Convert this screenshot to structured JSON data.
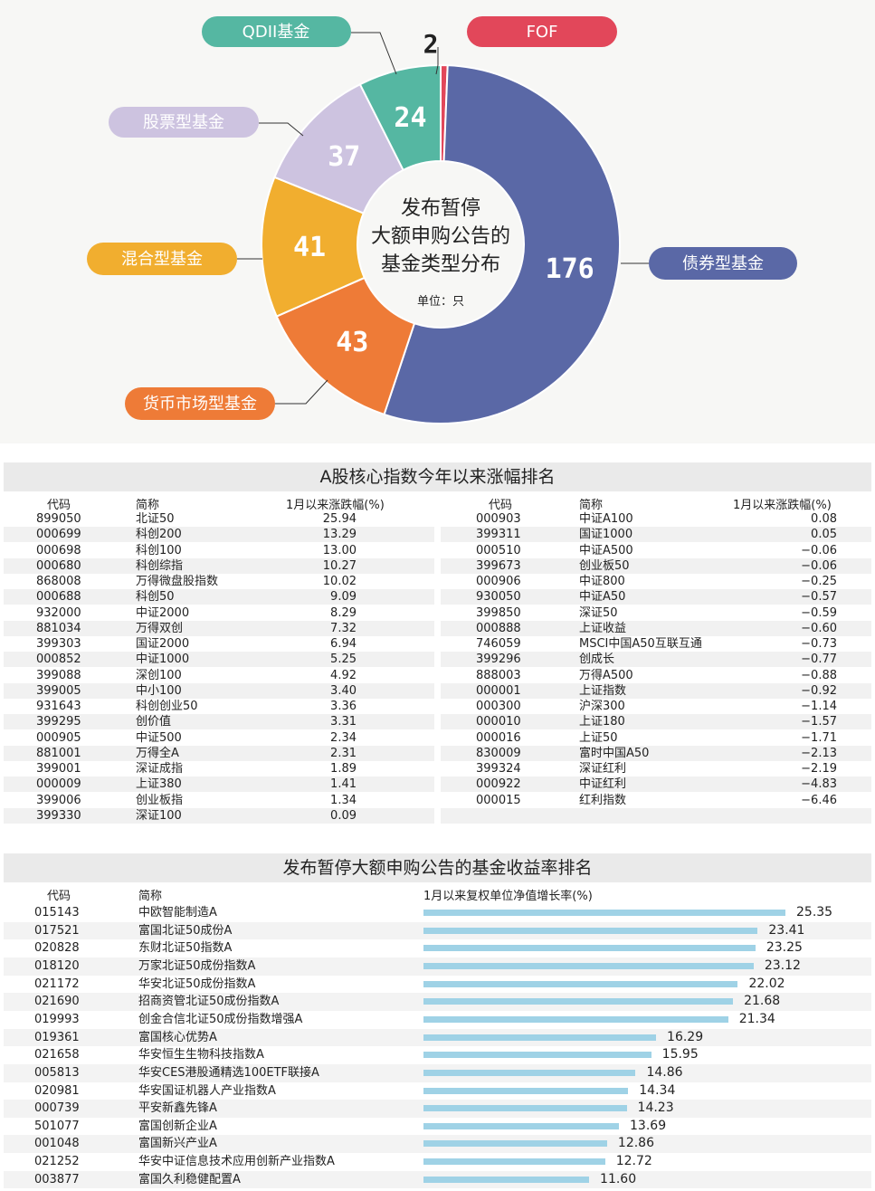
{
  "donut": {
    "title_lines": [
      "发布暂停",
      "大额申购公告的",
      "基金类型分布"
    ],
    "unit": "单位：只",
    "chart_data": {
      "type": "pie",
      "title": "发布暂停大额申购公告的基金类型分布",
      "unit": "只",
      "categories": [
        "FOF",
        "债券型基金",
        "货币市场型基金",
        "混合型基金",
        "股票型基金",
        "QDII基金"
      ],
      "values": [
        2,
        176,
        43,
        41,
        37,
        24
      ],
      "colors": [
        "#e2475a",
        "#5a68a6",
        "#ee7b37",
        "#f1ae2f",
        "#cdc3e0",
        "#55b7a2"
      ],
      "label_colors": [
        "#222222",
        "#ffffff",
        "#ffffff",
        "#ffffff",
        "#ffffff",
        "#ffffff"
      ]
    }
  },
  "index_table": {
    "title": "A股核心指数今年以来涨幅排名",
    "headers": [
      "代码",
      "简称",
      "1月以来涨跌幅(%)"
    ],
    "left_rows": [
      [
        "899050",
        "北证50",
        "25.94"
      ],
      [
        "000699",
        "科创200",
        "13.29"
      ],
      [
        "000698",
        "科创100",
        "13.00"
      ],
      [
        "000680",
        "科创综指",
        "10.27"
      ],
      [
        "868008",
        "万得微盘股指数",
        "10.02"
      ],
      [
        "000688",
        "科创50",
        "9.09"
      ],
      [
        "932000",
        "中证2000",
        "8.29"
      ],
      [
        "881034",
        "万得双创",
        "7.32"
      ],
      [
        "399303",
        "国证2000",
        "6.94"
      ],
      [
        "000852",
        "中证1000",
        "5.25"
      ],
      [
        "399088",
        "深创100",
        "4.92"
      ],
      [
        "399005",
        "中小100",
        "3.40"
      ],
      [
        "931643",
        "科创创业50",
        "3.36"
      ],
      [
        "399295",
        "创价值",
        "3.31"
      ],
      [
        "000905",
        "中证500",
        "2.34"
      ],
      [
        "881001",
        "万得全A",
        "2.31"
      ],
      [
        "399001",
        "深证成指",
        "1.89"
      ],
      [
        "000009",
        "上证380",
        "1.41"
      ],
      [
        "399006",
        "创业板指",
        "1.34"
      ],
      [
        "399330",
        "深证100",
        "0.09"
      ]
    ],
    "right_rows": [
      [
        "000903",
        "中证A100",
        "0.08"
      ],
      [
        "399311",
        "国证1000",
        "0.05"
      ],
      [
        "000510",
        "中证A500",
        "−0.06"
      ],
      [
        "399673",
        "创业板50",
        "−0.06"
      ],
      [
        "000906",
        "中证800",
        "−0.25"
      ],
      [
        "930050",
        "中证A50",
        "−0.57"
      ],
      [
        "399850",
        "深证50",
        "−0.59"
      ],
      [
        "000888",
        "上证收益",
        "−0.60"
      ],
      [
        "746059",
        "MSCI中国A50互联互通",
        "−0.73"
      ],
      [
        "399296",
        "创成长",
        "−0.77"
      ],
      [
        "888003",
        "万得A500",
        "−0.88"
      ],
      [
        "000001",
        "上证指数",
        "−0.92"
      ],
      [
        "000300",
        "沪深300",
        "−1.14"
      ],
      [
        "000010",
        "上证180",
        "−1.57"
      ],
      [
        "000016",
        "上证50",
        "−1.71"
      ],
      [
        "830009",
        "富时中国A50",
        "−2.13"
      ],
      [
        "399324",
        "深证红利",
        "−2.19"
      ],
      [
        "000922",
        "中证红利",
        "−4.83"
      ],
      [
        "000015",
        "红利指数",
        "−6.46"
      ]
    ]
  },
  "fund_ranking": {
    "title": "发布暂停大额申购公告的基金收益率排名",
    "headers": [
      "代码",
      "简称",
      "1月以来复权单位净值增长率(%)"
    ],
    "bar_color": "#9fd2e6",
    "chart_data": {
      "type": "bar",
      "orientation": "horizontal",
      "xlabel": "1月以来复权单位净值增长率(%)",
      "categories": [
        "中欧智能制造A",
        "富国北证50成份A",
        "东财北证50指数A",
        "万家北证50成份指数A",
        "华安北证50成份指数A",
        "招商资管北证50成份指数A",
        "创金合信北证50成份指数增强A",
        "富国核心优势A",
        "华安恒生生物科技指数A",
        "华安CES港股通精选100ETF联接A",
        "华安国证机器人产业指数A",
        "平安新鑫先锋A",
        "富国创新企业A",
        "富国新兴产业A",
        "华安中证信息技术应用创新产业指数A",
        "富国久利稳健配置A"
      ],
      "codes": [
        "015143",
        "017521",
        "020828",
        "018120",
        "021172",
        "021690",
        "019993",
        "019361",
        "021658",
        "005813",
        "020981",
        "000739",
        "501077",
        "001048",
        "021252",
        "003877"
      ],
      "values": [
        25.35,
        23.41,
        23.25,
        23.12,
        22.02,
        21.68,
        21.34,
        16.29,
        15.95,
        14.86,
        14.34,
        14.23,
        13.69,
        12.86,
        12.72,
        11.6
      ],
      "labels": [
        "25.35",
        "23.41",
        "23.25",
        "23.12",
        "22.02",
        "21.68",
        "21.34",
        "16.29",
        "15.95",
        "14.86",
        "14.34",
        "14.23",
        "13.69",
        "12.86",
        "12.72",
        "11.60"
      ]
    }
  }
}
